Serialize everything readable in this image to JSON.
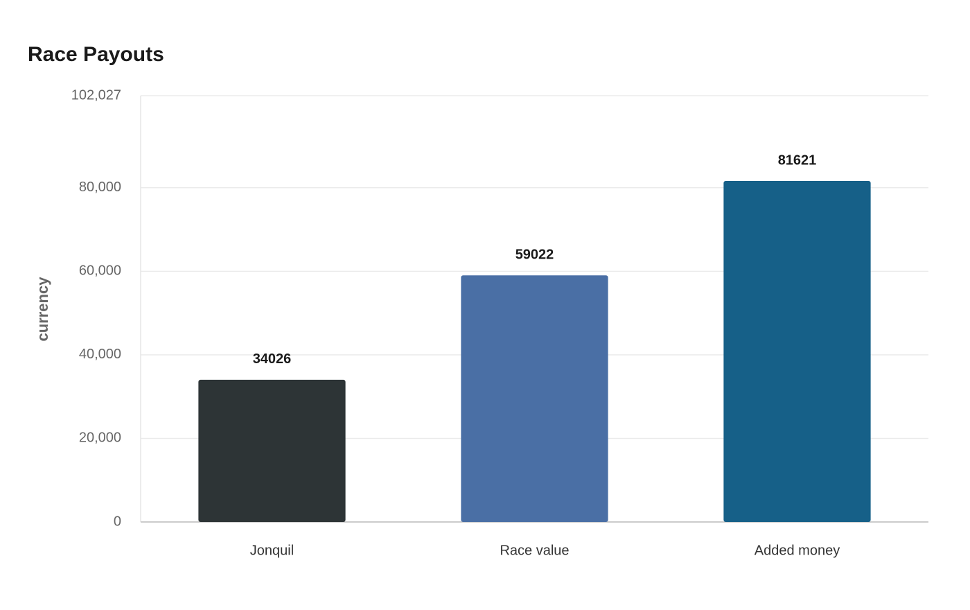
{
  "chart_data": {
    "type": "bar",
    "title": "Race Payouts",
    "y_label": "currency",
    "categories": [
      "Jonquil",
      "Race value",
      "Added money"
    ],
    "values": [
      34026,
      59022,
      81621
    ],
    "colors": [
      "#2d3436",
      "#4a6fa5",
      "#166088"
    ],
    "ylim": [
      0,
      102027
    ],
    "yticks": [
      0,
      {
        "value": 20000,
        "label": "20,000"
      },
      {
        "value": 40000,
        "label": "40,000"
      },
      {
        "value": 60000,
        "label": "60,000"
      },
      {
        "value": 80000,
        "label": "80,000"
      },
      {
        "value": 102027,
        "label": "102,027"
      }
    ],
    "grid": true
  }
}
